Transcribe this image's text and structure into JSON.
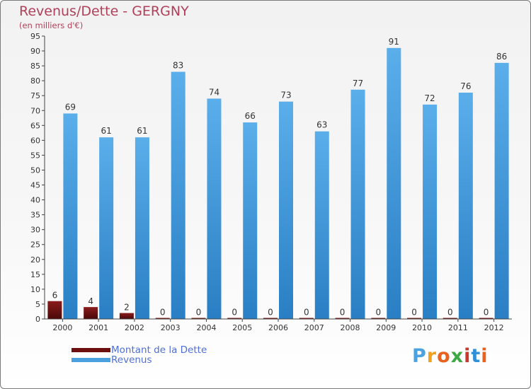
{
  "header": {
    "title": "Revenus/Dette - GERGNY",
    "subtitle": "(en milliers d'€)"
  },
  "chart_data": {
    "type": "bar",
    "title": "Revenus/Dette - GERGNY",
    "ylabel": "(en milliers d'€)",
    "xlabel": "",
    "categories": [
      "2000",
      "2001",
      "2002",
      "2003",
      "2004",
      "2005",
      "2006",
      "2007",
      "2008",
      "2009",
      "2010",
      "2011",
      "2012"
    ],
    "series": [
      {
        "name": "Montant de la Dette",
        "color": "#6e0f0f",
        "values": [
          6,
          4,
          2,
          0,
          0,
          0,
          0,
          0,
          0,
          0,
          0,
          0,
          0
        ]
      },
      {
        "name": "Revenus",
        "color": "#4a9fdf",
        "values": [
          69,
          61,
          61,
          83,
          74,
          66,
          73,
          63,
          77,
          91,
          72,
          76,
          86
        ]
      }
    ],
    "ylim": [
      0,
      95
    ],
    "yticks": [
      0,
      5,
      10,
      15,
      20,
      25,
      30,
      35,
      40,
      45,
      50,
      55,
      60,
      65,
      70,
      75,
      80,
      85,
      90,
      95
    ],
    "grid": false,
    "legend": "bottom-left"
  },
  "legend": {
    "items": [
      {
        "label": "Montant de la Dette",
        "color": "#6e0f0f"
      },
      {
        "label": "Revenus",
        "color": "#4a9fdf"
      }
    ]
  },
  "brand": {
    "text": "Proxiti",
    "letters": [
      "P",
      "r",
      "o",
      "x",
      "i",
      "t",
      "i"
    ],
    "colors": [
      "#4aa3e0",
      "#f0a21c",
      "#e8621e",
      "#3ea844",
      "#c8382f",
      "#2f8fd8",
      "#e8621e"
    ]
  }
}
